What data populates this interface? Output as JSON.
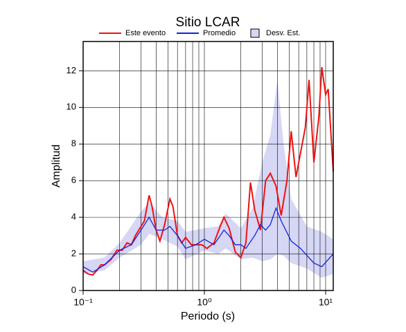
{
  "chart_data": {
    "type": "line",
    "title": "Sitio LCAR",
    "x_label": "Periodo (s)",
    "y_label": "Amplitud",
    "xscale": "log",
    "xlim": [
      0.1,
      11.56
    ],
    "ylim": [
      0,
      13.6
    ],
    "xticks": [
      {
        "value": 0.1,
        "label": "10⁻¹"
      },
      {
        "value": 1,
        "label": "10⁰"
      },
      {
        "value": 10,
        "label": "10¹"
      }
    ],
    "xgrid": [
      0.2,
      0.3,
      0.4,
      0.5,
      0.6,
      0.7,
      0.8,
      0.9,
      1,
      2,
      3,
      4,
      5,
      6,
      7,
      8,
      9,
      10
    ],
    "yticks": [
      0,
      2,
      4,
      6,
      8,
      10,
      12
    ],
    "grid": true,
    "band": {
      "name": "Desv. Est.",
      "color": "#d6d6f5",
      "x": [
        0.1,
        0.15,
        0.2,
        0.3,
        0.35,
        0.45,
        0.6,
        0.7,
        1.0,
        1.3,
        1.5,
        2.0,
        2.5,
        3.0,
        3.5,
        4.0,
        4.5,
        5.2,
        7,
        9.3,
        11.56
      ],
      "low": [
        0.9,
        1.1,
        1.8,
        2.5,
        3.1,
        2.8,
        2.4,
        1.7,
        2.2,
        2.0,
        2.3,
        1.7,
        1.8,
        1.6,
        1.7,
        2.0,
        1.9,
        1.5,
        1.2,
        0.7,
        0.9
      ],
      "high": [
        1.6,
        1.8,
        2.6,
        4.3,
        4.8,
        4.0,
        3.8,
        3.2,
        3.4,
        3.5,
        4.2,
        3.4,
        4.5,
        7.0,
        8.5,
        11.5,
        8.0,
        5.0,
        3.5,
        3.2,
        2.8
      ]
    },
    "series": [
      {
        "name": "Este evento",
        "color": "#ee1111",
        "x": [
          0.1,
          0.11,
          0.12,
          0.13,
          0.14,
          0.15,
          0.17,
          0.19,
          0.21,
          0.23,
          0.25,
          0.27,
          0.3,
          0.32,
          0.35,
          0.37,
          0.4,
          0.43,
          0.47,
          0.52,
          0.55,
          0.6,
          0.65,
          0.7,
          0.78,
          0.85,
          0.95,
          1.05,
          1.2,
          1.35,
          1.45,
          1.6,
          1.8,
          2.0,
          2.2,
          2.4,
          2.6,
          2.9,
          3.2,
          3.5,
          3.9,
          4.3,
          4.8,
          5.2,
          5.7,
          6.2,
          6.8,
          7.3,
          8.0,
          8.8,
          9.3,
          10,
          10.5,
          11.56
        ],
        "values": [
          1.1,
          0.9,
          0.85,
          1.1,
          1.4,
          1.4,
          1.7,
          2.2,
          2.2,
          2.6,
          2.5,
          3.0,
          3.5,
          3.8,
          5.2,
          4.6,
          3.3,
          2.7,
          3.6,
          5.0,
          4.6,
          3.0,
          2.6,
          2.9,
          2.5,
          2.5,
          2.5,
          2.3,
          2.6,
          3.5,
          4.0,
          3.4,
          2.1,
          1.8,
          2.6,
          5.9,
          4.4,
          3.3,
          6.0,
          6.4,
          5.7,
          4.1,
          6.0,
          8.7,
          6.2,
          7.5,
          8.9,
          11.5,
          7.0,
          9.5,
          12.2,
          10.7,
          11.0,
          6.5
        ]
      },
      {
        "name": "Promedio",
        "color": "#1122dd",
        "x": [
          0.1,
          0.12,
          0.15,
          0.2,
          0.25,
          0.3,
          0.35,
          0.4,
          0.47,
          0.52,
          0.6,
          0.7,
          0.85,
          1.0,
          1.2,
          1.45,
          1.6,
          1.8,
          2.0,
          2.2,
          2.6,
          2.9,
          3.2,
          3.5,
          3.9,
          4.3,
          5.2,
          6.2,
          8.0,
          9.3,
          11.56
        ],
        "values": [
          1.3,
          1.0,
          1.4,
          2.2,
          2.5,
          3.3,
          4.0,
          3.3,
          3.3,
          3.5,
          3.0,
          2.3,
          2.5,
          2.8,
          2.5,
          3.3,
          3.0,
          2.5,
          2.5,
          2.3,
          3.0,
          3.6,
          3.3,
          3.6,
          4.5,
          3.8,
          2.7,
          2.3,
          1.5,
          1.3,
          2.0
        ]
      }
    ]
  }
}
